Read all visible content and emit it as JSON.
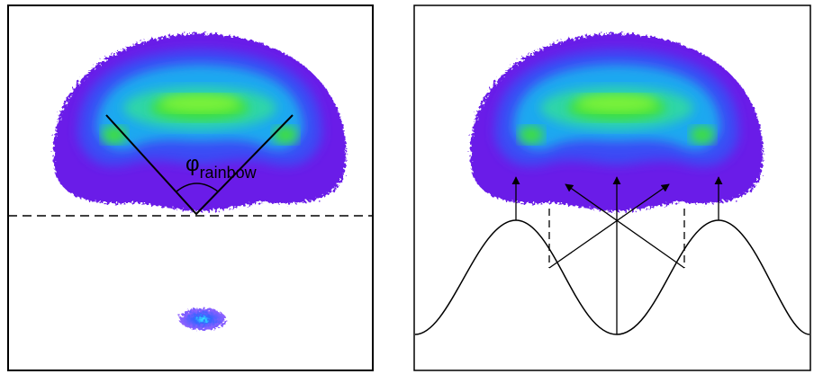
{
  "annotation": {
    "symbol": "φ",
    "subscript": "rainbow"
  }
}
